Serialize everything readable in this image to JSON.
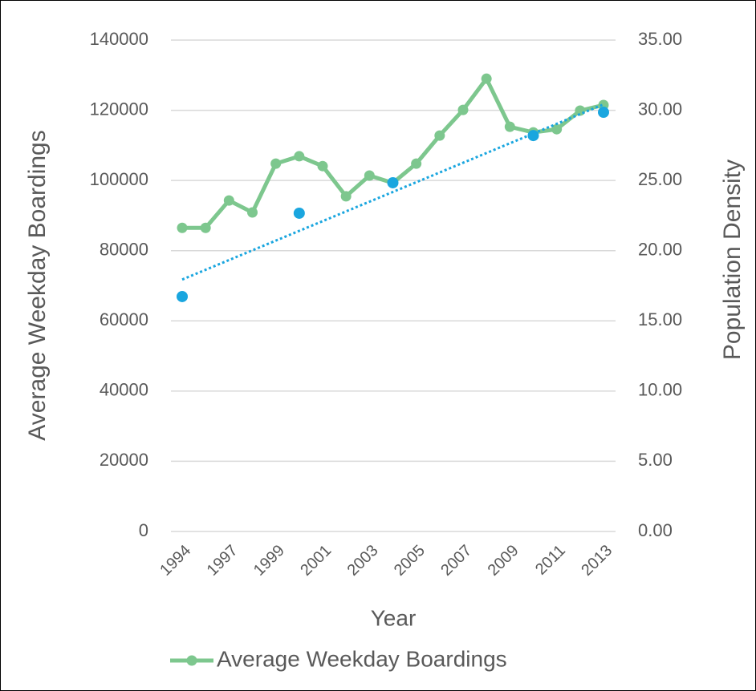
{
  "chart_data": {
    "type": "line",
    "x_label": "Year",
    "y_label": "Average Weekday Boardings",
    "y2_label": "Population Density",
    "categories": [
      "1994",
      null,
      "1997",
      null,
      "1999",
      null,
      "2001",
      null,
      "2003",
      null,
      "2005",
      null,
      "2007",
      null,
      "2009",
      null,
      "2011",
      null,
      "2013"
    ],
    "series": [
      {
        "name": "Average Weekday Boardings",
        "color": "#7dc78e",
        "values": [
          86500,
          86500,
          94300,
          90900,
          104800,
          106900,
          104100,
          95500,
          101400,
          99300,
          104800,
          112800,
          120100,
          129000,
          115300,
          113700,
          114600,
          119900,
          121500
        ]
      },
      {
        "color": "#1aa6df",
        "axis": "y2",
        "markers_only": true,
        "trendline": "linear",
        "values": [
          16.73,
          null,
          null,
          null,
          null,
          22.67,
          null,
          null,
          null,
          24.84,
          null,
          null,
          null,
          null,
          null,
          28.2,
          null,
          null,
          29.86
        ]
      }
    ],
    "ylim": [
      0,
      140000
    ],
    "yticks": [
      0,
      20000,
      40000,
      60000,
      80000,
      100000,
      120000,
      140000
    ],
    "y2lim": [
      0,
      35
    ],
    "y2ticks": [
      {
        "value": 0,
        "label": "0.00"
      },
      {
        "value": 5,
        "label": "5.00"
      },
      {
        "value": 10,
        "label": "10.00"
      },
      {
        "value": 15,
        "label": "15.00"
      },
      {
        "value": 20,
        "label": "20.00"
      },
      {
        "value": 25,
        "label": "25.00"
      },
      {
        "value": 30,
        "label": "30.00"
      },
      {
        "value": 35,
        "label": "35.00"
      }
    ],
    "grid": true,
    "legend": "bottom"
  }
}
